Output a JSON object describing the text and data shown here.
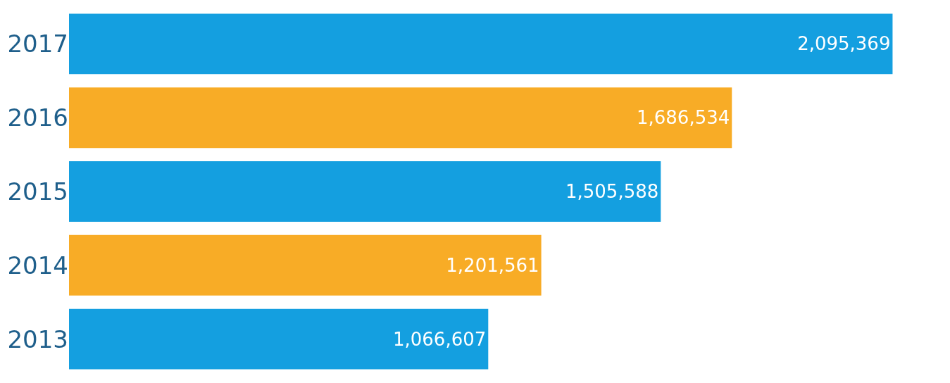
{
  "chart_data": {
    "type": "bar",
    "orientation": "horizontal",
    "categories": [
      "2017",
      "2016",
      "2015",
      "2014",
      "2013"
    ],
    "values": [
      2095369,
      1686534,
      1505588,
      1201561,
      1066607
    ],
    "colors": [
      "#149fe0",
      "#f8ac26",
      "#149fe0",
      "#f8ac26",
      "#149fe0"
    ],
    "value_labels": [
      "2,095,369",
      "1,686,534",
      "1,505,588",
      "1,201,561",
      "1,066,607"
    ],
    "tick_labels": "y"
  }
}
